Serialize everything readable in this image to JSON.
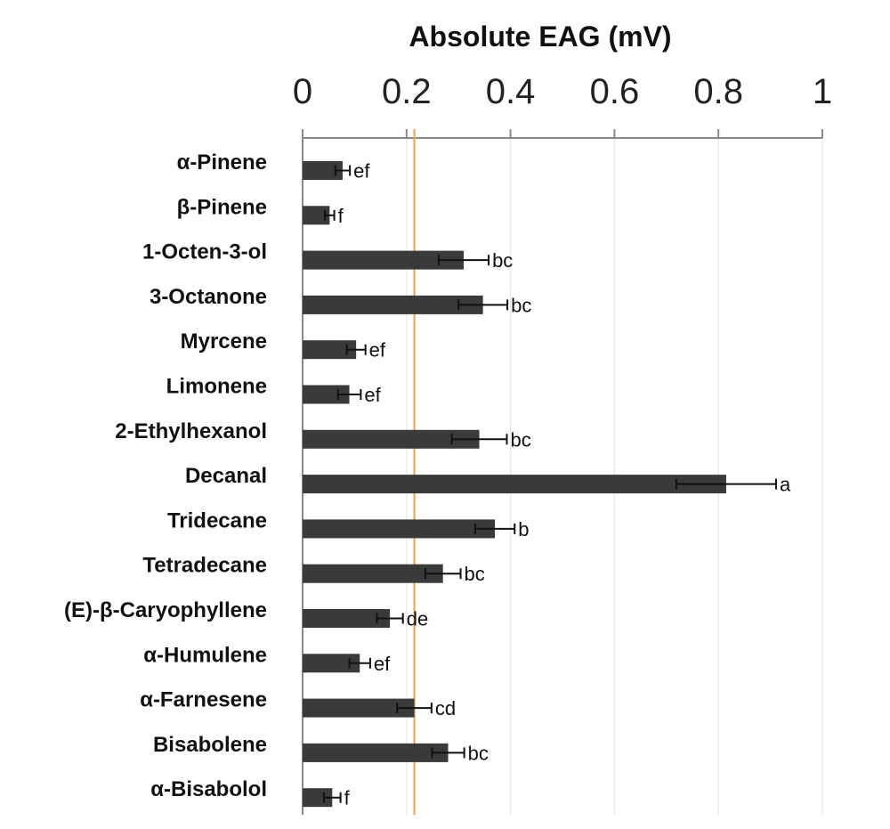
{
  "chart_data": {
    "type": "bar",
    "orientation": "horizontal",
    "title": "Absolute EAG (mV)",
    "xlabel": "Absolute EAG (mV)",
    "ylabel": "",
    "xlim": [
      0,
      1
    ],
    "xticks": [
      0,
      0.2,
      0.4,
      0.6,
      0.8,
      1
    ],
    "xtick_labels": [
      "0",
      "0.2",
      "0.4",
      "0.6",
      "0.8",
      "1"
    ],
    "axis_position": "top",
    "grid": "vertical",
    "categories": [
      "α-Pinene",
      "β-Pinene",
      "1-Octen-3-ol",
      "3-Octanone",
      "Myrcene",
      "Limonene",
      "2-Ethylhexanol",
      "Decanal",
      "Tridecane",
      "Tetradecane",
      "(E)-β-Caryophyllene",
      "α-Humulene",
      "α-Farnesene",
      "Bisabolene",
      "α-Bisabolol"
    ],
    "values": [
      0.077,
      0.052,
      0.31,
      0.347,
      0.103,
      0.09,
      0.34,
      0.815,
      0.37,
      0.27,
      0.168,
      0.11,
      0.215,
      0.28,
      0.057
    ],
    "errors": [
      0.014,
      0.009,
      0.048,
      0.047,
      0.018,
      0.022,
      0.053,
      0.096,
      0.038,
      0.034,
      0.025,
      0.02,
      0.033,
      0.031,
      0.016
    ],
    "significance_labels": [
      "ef",
      "f",
      "bc",
      "bc",
      "ef",
      "ef",
      "bc",
      "a",
      "b",
      "bc",
      "de",
      "ef",
      "cd",
      "bc",
      "f"
    ],
    "reference_line": 0.215,
    "colors": {
      "bar": "#3a3a3a",
      "reference_line": "#e8a24a",
      "axis": "#888888",
      "grid": "#e4e4e4",
      "error_bar": "#111111"
    }
  }
}
